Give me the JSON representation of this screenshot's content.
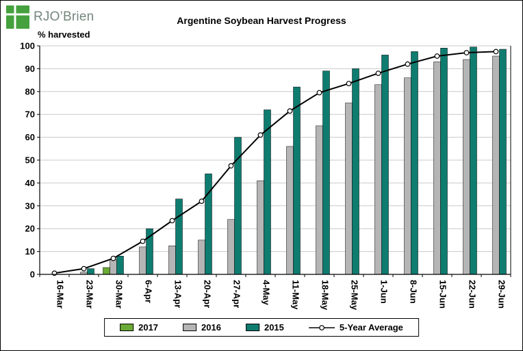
{
  "logo": {
    "text": "RJO’Brien",
    "mark_color": "#44a13e",
    "text_color": "#74867c"
  },
  "chart_data": {
    "type": "bar",
    "title": "Argentine Soybean Harvest Progress",
    "ylabel": "% harvested",
    "xlabel": "",
    "ylim": [
      0,
      100
    ],
    "ytick_interval": 10,
    "grid": true,
    "legend_position": "bottom",
    "categories": [
      "16-Mar",
      "23-Mar",
      "30-Mar",
      "6-Apr",
      "13-Apr",
      "20-Apr",
      "27-Apr",
      "4-May",
      "11-May",
      "18-May",
      "25-May",
      "1-Jun",
      "8-Jun",
      "15-Jun",
      "22-Jun",
      "29-Jun"
    ],
    "series": [
      {
        "name": "2017",
        "type": "bar",
        "color": "#6aaa35",
        "values": [
          0,
          0,
          3,
          null,
          null,
          null,
          null,
          null,
          null,
          null,
          null,
          null,
          null,
          null,
          null,
          null
        ]
      },
      {
        "name": "2016",
        "type": "bar",
        "color": "#b5b5b5",
        "values": [
          0,
          1,
          6.5,
          12,
          12.5,
          15,
          24,
          41,
          56,
          65,
          75,
          83,
          86,
          93,
          94,
          95.5
        ]
      },
      {
        "name": "2015",
        "type": "bar",
        "color": "#0f7c70",
        "values": [
          0,
          2.5,
          8,
          20,
          33,
          44,
          60,
          72,
          82,
          89,
          90,
          96,
          97.5,
          99,
          99.5,
          98.5
        ]
      },
      {
        "name": "5-Year Average",
        "type": "line",
        "color": "#000000",
        "marker": "open-circle",
        "values": [
          0.5,
          2.5,
          7,
          14.5,
          23.5,
          32,
          47.5,
          61,
          71.5,
          79.5,
          83.5,
          88,
          92,
          95.5,
          97,
          97.5
        ]
      }
    ]
  }
}
